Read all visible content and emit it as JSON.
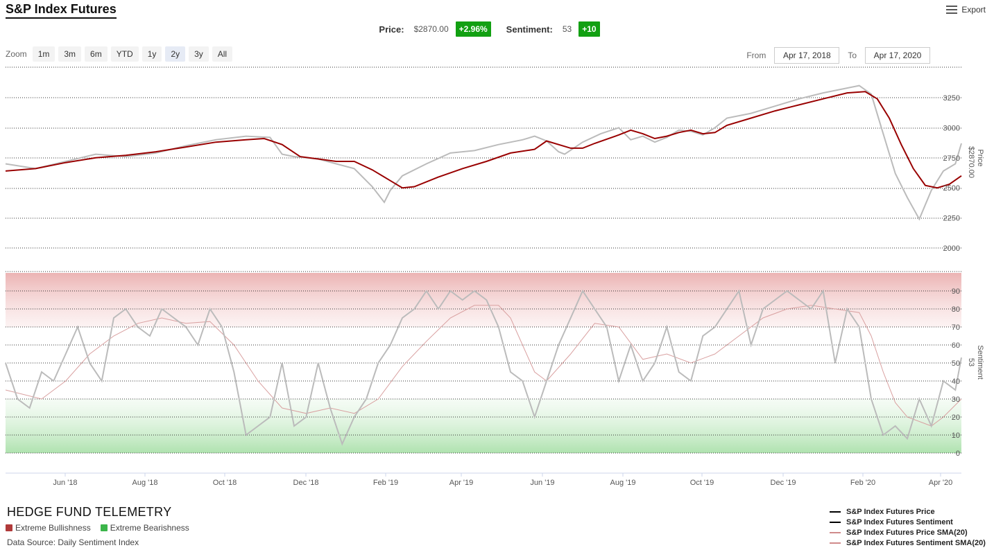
{
  "header": {
    "title": "S&P Index Futures",
    "export_label": "Export"
  },
  "stats": {
    "price_label": "Price:",
    "price_value": "$2870.00",
    "price_change": "+2.96%",
    "sentiment_label": "Sentiment:",
    "sentiment_value": "53",
    "sentiment_change": "+10",
    "badge_color": "#12a012"
  },
  "zoom": {
    "label": "Zoom",
    "buttons": [
      "1m",
      "3m",
      "6m",
      "YTD",
      "1y",
      "2y",
      "3y",
      "All"
    ],
    "active": "2y"
  },
  "range": {
    "from_label": "From",
    "from_value": "Apr 17, 2018",
    "to_label": "To",
    "to_value": "Apr 17, 2020"
  },
  "footer": {
    "brand": "HEDGE FUND TELEMETRY",
    "bull_label": "Extreme Bullishness",
    "bull_color": "#b03a3a",
    "bear_label": "Extreme Bearishness",
    "bear_color": "#3cb54a",
    "source": "Data Source: Daily Sentiment Index"
  },
  "legend": [
    {
      "name": "S&P Index Futures Price",
      "color": "#000000"
    },
    {
      "name": "S&P Index Futures Sentiment",
      "color": "#000000"
    },
    {
      "name": "S&P Index Futures Price SMA(20)",
      "color": "#d08a8a"
    },
    {
      "name": "S&P Index Futures Sentiment SMA(20)",
      "color": "#d08a8a"
    }
  ],
  "chart_data": {
    "type": "line",
    "x_ticks": [
      "Jun '18",
      "Aug '18",
      "Oct '18",
      "Dec '18",
      "Feb '19",
      "Apr '19",
      "Jun '19",
      "Aug '19",
      "Oct '19",
      "Dec '19",
      "Feb '20",
      "Apr '20"
    ],
    "price_panel": {
      "ylabel": "Price",
      "last_value_label": "$2870.00",
      "ylim": [
        2000,
        3400
      ],
      "ticks": [
        2000,
        2250,
        2500,
        2750,
        3000,
        3250
      ],
      "price_points": [
        [
          0,
          2700
        ],
        [
          5,
          2660
        ],
        [
          10,
          2720
        ],
        [
          15,
          2780
        ],
        [
          20,
          2760
        ],
        [
          25,
          2790
        ],
        [
          30,
          2850
        ],
        [
          35,
          2900
        ],
        [
          40,
          2930
        ],
        [
          44,
          2920
        ],
        [
          46,
          2780
        ],
        [
          48,
          2760
        ],
        [
          52,
          2740
        ],
        [
          55,
          2700
        ],
        [
          58,
          2660
        ],
        [
          61,
          2510
        ],
        [
          63,
          2380
        ],
        [
          64,
          2480
        ],
        [
          66,
          2600
        ],
        [
          70,
          2700
        ],
        [
          74,
          2790
        ],
        [
          78,
          2810
        ],
        [
          82,
          2860
        ],
        [
          86,
          2900
        ],
        [
          88,
          2930
        ],
        [
          90,
          2890
        ],
        [
          92,
          2800
        ],
        [
          93,
          2780
        ],
        [
          96,
          2880
        ],
        [
          99,
          2950
        ],
        [
          102,
          3000
        ],
        [
          104,
          2900
        ],
        [
          106,
          2930
        ],
        [
          108,
          2880
        ],
        [
          110,
          2920
        ],
        [
          112,
          2980
        ],
        [
          114,
          2970
        ],
        [
          116,
          2940
        ],
        [
          118,
          3000
        ],
        [
          120,
          3080
        ],
        [
          124,
          3120
        ],
        [
          128,
          3180
        ],
        [
          132,
          3240
        ],
        [
          136,
          3290
        ],
        [
          140,
          3330
        ],
        [
          142,
          3350
        ],
        [
          144,
          3280
        ],
        [
          146,
          2950
        ],
        [
          148,
          2620
        ],
        [
          150,
          2420
        ],
        [
          152,
          2240
        ],
        [
          154,
          2480
        ],
        [
          156,
          2640
        ],
        [
          158,
          2700
        ],
        [
          159,
          2870
        ]
      ],
      "sma_points": [
        [
          0,
          2640
        ],
        [
          5,
          2660
        ],
        [
          10,
          2710
        ],
        [
          15,
          2750
        ],
        [
          20,
          2770
        ],
        [
          25,
          2800
        ],
        [
          30,
          2840
        ],
        [
          35,
          2880
        ],
        [
          40,
          2900
        ],
        [
          43,
          2910
        ],
        [
          46,
          2860
        ],
        [
          49,
          2760
        ],
        [
          52,
          2740
        ],
        [
          55,
          2720
        ],
        [
          58,
          2720
        ],
        [
          61,
          2650
        ],
        [
          64,
          2560
        ],
        [
          66,
          2500
        ],
        [
          68,
          2510
        ],
        [
          72,
          2590
        ],
        [
          76,
          2660
        ],
        [
          80,
          2720
        ],
        [
          84,
          2790
        ],
        [
          88,
          2820
        ],
        [
          90,
          2890
        ],
        [
          94,
          2830
        ],
        [
          96,
          2830
        ],
        [
          98,
          2870
        ],
        [
          102,
          2940
        ],
        [
          104,
          2980
        ],
        [
          106,
          2950
        ],
        [
          108,
          2910
        ],
        [
          110,
          2930
        ],
        [
          112,
          2960
        ],
        [
          114,
          2980
        ],
        [
          116,
          2950
        ],
        [
          118,
          2960
        ],
        [
          120,
          3020
        ],
        [
          124,
          3080
        ],
        [
          128,
          3140
        ],
        [
          132,
          3190
        ],
        [
          136,
          3240
        ],
        [
          140,
          3290
        ],
        [
          143,
          3300
        ],
        [
          145,
          3240
        ],
        [
          147,
          3080
        ],
        [
          149,
          2860
        ],
        [
          151,
          2660
        ],
        [
          153,
          2520
        ],
        [
          155,
          2500
        ],
        [
          157,
          2530
        ],
        [
          159,
          2600
        ]
      ]
    },
    "sentiment_panel": {
      "ylabel": "Sentiment",
      "last_value_label": "53",
      "ylim": [
        0,
        100
      ],
      "ticks": [
        0,
        10,
        20,
        30,
        40,
        50,
        60,
        70,
        80,
        90
      ],
      "extreme_bullish_zone": [
        70,
        100
      ],
      "extreme_bearish_zone": [
        0,
        30
      ],
      "sentiment_points": [
        [
          0,
          50
        ],
        [
          2,
          30
        ],
        [
          4,
          25
        ],
        [
          6,
          45
        ],
        [
          8,
          40
        ],
        [
          10,
          55
        ],
        [
          12,
          70
        ],
        [
          14,
          50
        ],
        [
          16,
          40
        ],
        [
          18,
          75
        ],
        [
          20,
          80
        ],
        [
          22,
          70
        ],
        [
          24,
          65
        ],
        [
          26,
          80
        ],
        [
          28,
          75
        ],
        [
          30,
          70
        ],
        [
          32,
          60
        ],
        [
          34,
          80
        ],
        [
          36,
          70
        ],
        [
          38,
          45
        ],
        [
          40,
          10
        ],
        [
          42,
          15
        ],
        [
          44,
          20
        ],
        [
          46,
          50
        ],
        [
          48,
          15
        ],
        [
          50,
          20
        ],
        [
          52,
          50
        ],
        [
          54,
          25
        ],
        [
          56,
          5
        ],
        [
          58,
          20
        ],
        [
          60,
          30
        ],
        [
          62,
          50
        ],
        [
          64,
          60
        ],
        [
          66,
          75
        ],
        [
          68,
          80
        ],
        [
          70,
          90
        ],
        [
          72,
          80
        ],
        [
          74,
          90
        ],
        [
          76,
          85
        ],
        [
          78,
          90
        ],
        [
          80,
          85
        ],
        [
          82,
          70
        ],
        [
          84,
          45
        ],
        [
          86,
          40
        ],
        [
          88,
          20
        ],
        [
          90,
          40
        ],
        [
          92,
          60
        ],
        [
          94,
          75
        ],
        [
          96,
          90
        ],
        [
          98,
          80
        ],
        [
          100,
          70
        ],
        [
          102,
          40
        ],
        [
          104,
          60
        ],
        [
          106,
          40
        ],
        [
          108,
          50
        ],
        [
          110,
          70
        ],
        [
          112,
          45
        ],
        [
          114,
          40
        ],
        [
          116,
          65
        ],
        [
          118,
          70
        ],
        [
          120,
          80
        ],
        [
          122,
          90
        ],
        [
          124,
          60
        ],
        [
          126,
          80
        ],
        [
          128,
          85
        ],
        [
          130,
          90
        ],
        [
          132,
          85
        ],
        [
          134,
          80
        ],
        [
          136,
          90
        ],
        [
          138,
          50
        ],
        [
          140,
          80
        ],
        [
          142,
          70
        ],
        [
          144,
          30
        ],
        [
          146,
          10
        ],
        [
          148,
          15
        ],
        [
          150,
          8
        ],
        [
          152,
          30
        ],
        [
          154,
          15
        ],
        [
          156,
          40
        ],
        [
          158,
          35
        ],
        [
          159,
          53
        ]
      ],
      "sma_points": [
        [
          0,
          35
        ],
        [
          6,
          30
        ],
        [
          10,
          40
        ],
        [
          14,
          55
        ],
        [
          18,
          65
        ],
        [
          22,
          72
        ],
        [
          26,
          75
        ],
        [
          30,
          72
        ],
        [
          34,
          73
        ],
        [
          38,
          60
        ],
        [
          42,
          40
        ],
        [
          46,
          25
        ],
        [
          50,
          22
        ],
        [
          54,
          25
        ],
        [
          58,
          22
        ],
        [
          62,
          30
        ],
        [
          66,
          48
        ],
        [
          70,
          62
        ],
        [
          74,
          75
        ],
        [
          78,
          82
        ],
        [
          82,
          82
        ],
        [
          84,
          75
        ],
        [
          86,
          60
        ],
        [
          88,
          45
        ],
        [
          90,
          40
        ],
        [
          94,
          55
        ],
        [
          98,
          72
        ],
        [
          102,
          70
        ],
        [
          106,
          52
        ],
        [
          110,
          55
        ],
        [
          114,
          50
        ],
        [
          118,
          55
        ],
        [
          122,
          65
        ],
        [
          126,
          75
        ],
        [
          130,
          80
        ],
        [
          134,
          82
        ],
        [
          138,
          80
        ],
        [
          142,
          78
        ],
        [
          144,
          65
        ],
        [
          146,
          45
        ],
        [
          148,
          28
        ],
        [
          150,
          20
        ],
        [
          154,
          15
        ],
        [
          156,
          20
        ],
        [
          159,
          30
        ]
      ]
    }
  }
}
